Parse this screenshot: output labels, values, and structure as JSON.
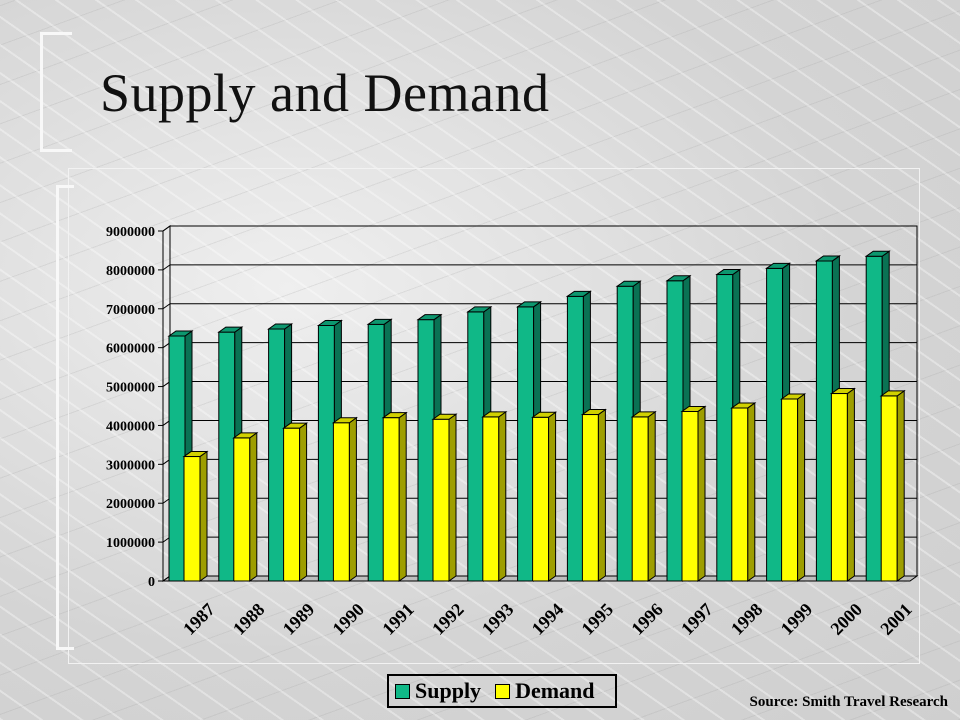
{
  "slide": {
    "title": "Supply and Demand",
    "source": "Source: Smith Travel Research"
  },
  "chart_data": {
    "type": "bar",
    "categories": [
      "1987",
      "1988",
      "1989",
      "1990",
      "1991",
      "1992",
      "1993",
      "1994",
      "1995",
      "1996",
      "1997",
      "1998",
      "1999",
      "2000",
      "2001"
    ],
    "series": [
      {
        "name": "Supply",
        "color": "#10b887",
        "values": [
          6300000,
          6400000,
          6480000,
          6570000,
          6600000,
          6720000,
          6920000,
          7050000,
          7320000,
          7580000,
          7720000,
          7880000,
          8040000,
          8230000,
          8350000
        ]
      },
      {
        "name": "Demand",
        "color": "#ffff00",
        "values": [
          3200000,
          3680000,
          3930000,
          4070000,
          4200000,
          4160000,
          4220000,
          4210000,
          4280000,
          4220000,
          4360000,
          4450000,
          4680000,
          4820000,
          4760000
        ]
      }
    ],
    "ylim": [
      0,
      9000000
    ],
    "yticks": [
      0,
      1000000,
      2000000,
      3000000,
      4000000,
      5000000,
      6000000,
      7000000,
      8000000,
      9000000
    ],
    "title": "",
    "xlabel": "",
    "ylabel": "",
    "grid": true,
    "legend": "bottom",
    "style": "3d"
  }
}
